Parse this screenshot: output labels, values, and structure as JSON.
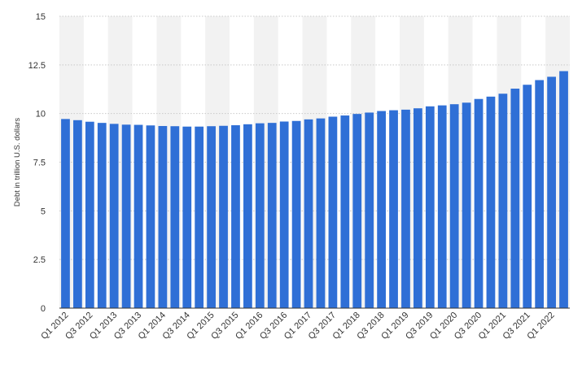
{
  "chart_data": {
    "type": "bar",
    "title": "",
    "xlabel": "",
    "ylabel": "Debt in trillion U.S. dollars",
    "ylim": [
      0,
      15
    ],
    "yticks": [
      0,
      2.5,
      5,
      7.5,
      10,
      12.5,
      15
    ],
    "ytick_labels": [
      "0",
      "2.5",
      "5",
      "7.5",
      "10",
      "12.5",
      "15"
    ],
    "grid": true,
    "legend": "none",
    "bar_color": "#2f6fd6",
    "band_color": "#f2f2f2",
    "categories": [
      "Q1 2012",
      "Q2 2012",
      "Q3 2012",
      "Q4 2012",
      "Q1 2013",
      "Q2 2013",
      "Q3 2013",
      "Q4 2013",
      "Q1 2014",
      "Q2 2014",
      "Q3 2014",
      "Q4 2014",
      "Q1 2015",
      "Q2 2015",
      "Q3 2015",
      "Q4 2015",
      "Q1 2016",
      "Q2 2016",
      "Q3 2016",
      "Q4 2016",
      "Q1 2017",
      "Q2 2017",
      "Q3 2017",
      "Q4 2017",
      "Q1 2018",
      "Q2 2018",
      "Q3 2018",
      "Q4 2018",
      "Q1 2019",
      "Q2 2019",
      "Q3 2019",
      "Q4 2019",
      "Q1 2020",
      "Q2 2020",
      "Q3 2020",
      "Q4 2020",
      "Q1 2021",
      "Q2 2021",
      "Q3 2021",
      "Q4 2021",
      "Q1 2022",
      "Q2 2022"
    ],
    "visible_xtick_labels": [
      "Q1 2012",
      "Q3 2012",
      "Q1 2013",
      "Q3 2013",
      "Q1 2014",
      "Q3 2014",
      "Q1 2015",
      "Q3 2015",
      "Q1 2016",
      "Q3 2016",
      "Q1 2017",
      "Q3 2017",
      "Q1 2018",
      "Q3 2018",
      "Q1 2019",
      "Q3 2019",
      "Q1 2020",
      "Q3 2020",
      "Q1 2021",
      "Q3 2021",
      "Q1 2022"
    ],
    "values": [
      9.72,
      9.66,
      9.58,
      9.52,
      9.47,
      9.43,
      9.42,
      9.39,
      9.36,
      9.35,
      9.33,
      9.33,
      9.35,
      9.37,
      9.4,
      9.45,
      9.5,
      9.52,
      9.59,
      9.62,
      9.7,
      9.75,
      9.84,
      9.9,
      9.98,
      10.05,
      10.13,
      10.17,
      10.2,
      10.27,
      10.37,
      10.42,
      10.48,
      10.56,
      10.75,
      10.87,
      11.02,
      11.28,
      11.48,
      11.72,
      11.89,
      12.18
    ]
  }
}
